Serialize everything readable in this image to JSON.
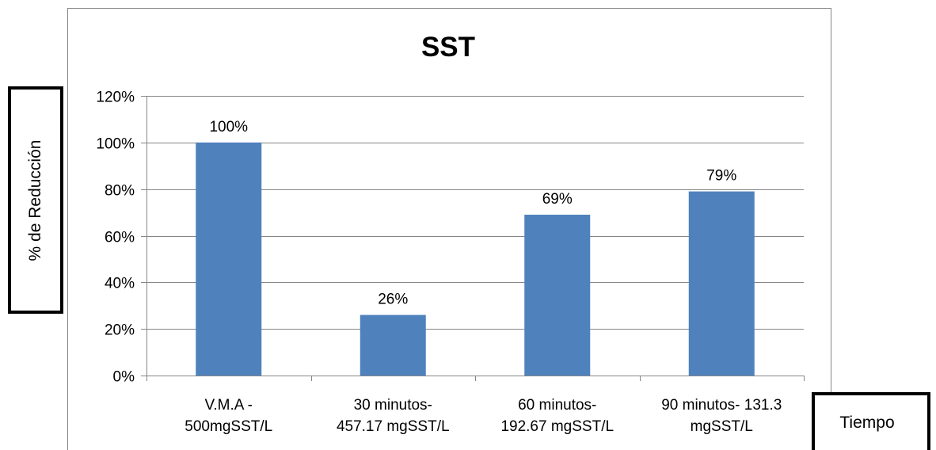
{
  "chart_data": {
    "type": "bar",
    "title": "SST",
    "xlabel": "Tiempo",
    "ylabel": "% de Reducción",
    "categories": [
      [
        "V.M.A -",
        "500mgSST/L"
      ],
      [
        "30 minutos-",
        "457.17 mgSST/L"
      ],
      [
        "60 minutos-",
        "192.67 mgSST/L"
      ],
      [
        "90 minutos- 131.3",
        "mgSST/L"
      ]
    ],
    "values": [
      100,
      26,
      69,
      79
    ],
    "data_labels": [
      "100%",
      "26%",
      "69%",
      "79%"
    ],
    "ylim": [
      0,
      120
    ],
    "yticks": [
      "0%",
      "20%",
      "40%",
      "60%",
      "80%",
      "100%",
      "120%"
    ],
    "grid": true,
    "legend": "none",
    "colors": {
      "bar": "#4F81BD",
      "grid": "#868686",
      "axis": "#868686",
      "frame": "#868686"
    }
  }
}
